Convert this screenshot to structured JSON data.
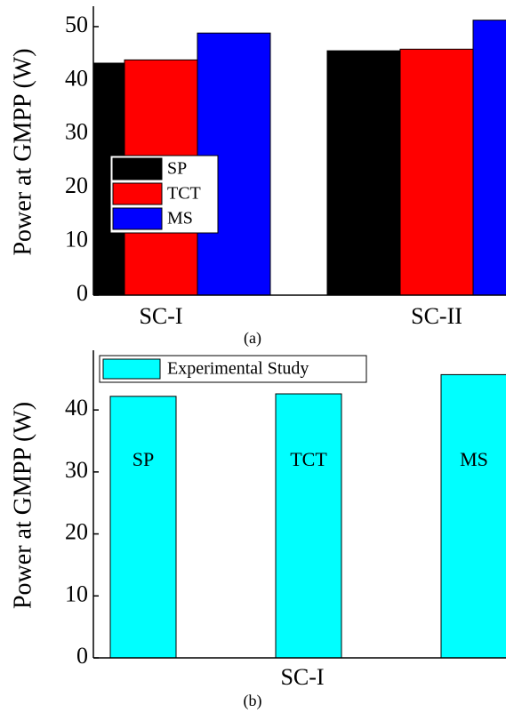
{
  "chart_data": [
    {
      "type": "bar",
      "caption": "(a)",
      "y_label": "Power at GMPP (W)",
      "categories": [
        "SC-I",
        "SC-II"
      ],
      "series": [
        {
          "name": "SP",
          "color": "#000000",
          "values": [
            43.2,
            45.5
          ]
        },
        {
          "name": "TCT",
          "color": "#ff0000",
          "values": [
            43.8,
            45.8
          ]
        },
        {
          "name": "MS",
          "color": "#0000ff",
          "values": [
            48.8,
            51.2
          ]
        }
      ],
      "ylim": [
        0,
        53.3
      ],
      "yticks": [
        0,
        10,
        20,
        30,
        40,
        50
      ],
      "legend": "left"
    },
    {
      "type": "bar",
      "caption": "(b)",
      "y_label": "Power at GMPP (W)",
      "x_label": "SC-I",
      "categories": [
        "SP",
        "TCT",
        "MS"
      ],
      "series": [
        {
          "name": "Experimental Study",
          "color": "#00ffff",
          "values": [
            42.2,
            42.6,
            45.7
          ]
        }
      ],
      "ylim": [
        0,
        49.2
      ],
      "yticks": [
        0,
        10,
        20,
        30,
        40
      ],
      "legend": "top-left"
    }
  ]
}
